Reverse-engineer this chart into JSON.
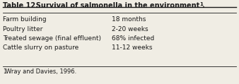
{
  "title_left": "Table 12.",
  "title_right": "  Survival of salmonella in the environment",
  "title_superscript": "1",
  "title_period": ".",
  "rows": [
    [
      "Farm building",
      "18 months"
    ],
    [
      "Poultry litter",
      "2-20 weeks"
    ],
    [
      "Treated sewage (final effluent)",
      "68% infected"
    ],
    [
      "Cattle slurry on pasture",
      "11-12 weeks"
    ]
  ],
  "footnote_super": "1",
  "footnote_text": "Wray and Davies, 1996.",
  "bg_color": "#f0ede4",
  "text_color": "#1a1a1a",
  "title_fontsize": 7.0,
  "body_fontsize": 6.5,
  "footnote_fontsize": 6.0
}
